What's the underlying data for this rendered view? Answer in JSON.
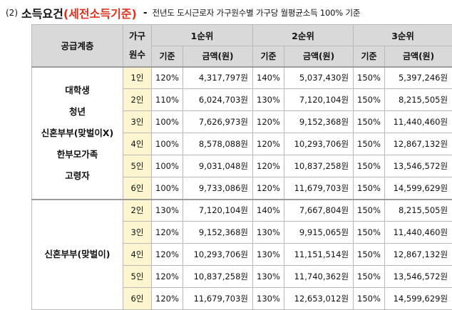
{
  "header": {
    "number": "(2)",
    "title": "소득요건",
    "highlight": "(세전소득기준)",
    "dash": "-",
    "subtitle": "전년도 도시근로자 가구원수별 가구당 월평균소득 100% 기준"
  },
  "table": {
    "col_supply": "공급계층",
    "col_household": "가구원수",
    "rank1": "1순위",
    "rank2": "2순위",
    "rank3": "3순위",
    "sub_base": "기준",
    "sub_amount": "금액(원)",
    "groups": [
      {
        "lines": [
          "대학생",
          "청년",
          "신혼부부(맞벌이X)",
          "한부모가족",
          "고령자"
        ],
        "rows": [
          {
            "hh": "1인",
            "b1": "120%",
            "a1": "4,317,797원",
            "b2": "140%",
            "a2": "5,037,430원",
            "b3": "150%",
            "a3": "5,397,246원"
          },
          {
            "hh": "2인",
            "b1": "110%",
            "a1": "6,024,703원",
            "b2": "130%",
            "a2": "7,120,104원",
            "b3": "150%",
            "a3": "8,215,505원"
          },
          {
            "hh": "3인",
            "b1": "100%",
            "a1": "7,626,973원",
            "b2": "120%",
            "a2": "9,152,368원",
            "b3": "150%",
            "a3": "11,440,460원"
          },
          {
            "hh": "4인",
            "b1": "100%",
            "a1": "8,578,088원",
            "b2": "120%",
            "a2": "10,293,706원",
            "b3": "150%",
            "a3": "12,867,132원"
          },
          {
            "hh": "5인",
            "b1": "100%",
            "a1": "9,031,048원",
            "b2": "120%",
            "a2": "10,837,258원",
            "b3": "150%",
            "a3": "13,546,572원"
          },
          {
            "hh": "6인",
            "b1": "100%",
            "a1": "9,733,086원",
            "b2": "120%",
            "a2": "11,679,703원",
            "b3": "150%",
            "a3": "14,599,629원"
          }
        ]
      },
      {
        "lines": [
          "신혼부부(맞벌이)"
        ],
        "rows": [
          {
            "hh": "2인",
            "b1": "130%",
            "a1": "7,120,104원",
            "b2": "140%",
            "a2": "7,667,804원",
            "b3": "150%",
            "a3": "8,215,505원"
          },
          {
            "hh": "3인",
            "b1": "120%",
            "a1": "9,152,368원",
            "b2": "130%",
            "a2": "9,915,065원",
            "b3": "150%",
            "a3": "11,440,460원"
          },
          {
            "hh": "4인",
            "b1": "120%",
            "a1": "10,293,706원",
            "b2": "130%",
            "a2": "11,151,514원",
            "b3": "150%",
            "a3": "12,867,132원"
          },
          {
            "hh": "5인",
            "b1": "120%",
            "a1": "10,837,258원",
            "b2": "130%",
            "a2": "11,740,362원",
            "b3": "150%",
            "a3": "13,546,572원"
          },
          {
            "hh": "6인",
            "b1": "120%",
            "a1": "11,679,703원",
            "b2": "130%",
            "a2": "12,653,012원",
            "b3": "150%",
            "a3": "14,599,629원"
          }
        ]
      }
    ]
  }
}
